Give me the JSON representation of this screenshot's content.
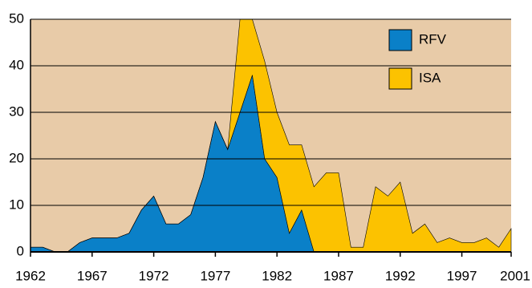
{
  "chart_data": {
    "type": "stacked_area",
    "x": [
      1962,
      1963,
      1964,
      1965,
      1966,
      1967,
      1968,
      1969,
      1970,
      1971,
      1972,
      1973,
      1974,
      1975,
      1976,
      1977,
      1978,
      1979,
      1980,
      1981,
      1982,
      1983,
      1984,
      1985,
      1986,
      1987,
      1988,
      1989,
      1990,
      1991,
      1992,
      1993,
      1994,
      1995,
      1996,
      1997,
      1998,
      1999,
      2000,
      2001
    ],
    "series": [
      {
        "name": "RFV",
        "color": "#0a80c8",
        "values": [
          1,
          1,
          0,
          0,
          2,
          3,
          3,
          3,
          4,
          9,
          12,
          6,
          6,
          8,
          16,
          28,
          22,
          30,
          38,
          20,
          16,
          4,
          9,
          0,
          0,
          0,
          0,
          0,
          0,
          0,
          0,
          0,
          0,
          0,
          0,
          0,
          0,
          0,
          0,
          0
        ]
      },
      {
        "name": "ISA",
        "color": "#fcc200",
        "values": [
          0,
          0,
          0,
          0,
          0,
          0,
          0,
          0,
          0,
          0,
          0,
          0,
          0,
          0,
          0,
          0,
          0,
          20,
          12,
          21,
          14,
          19,
          14,
          14,
          17,
          17,
          1,
          1,
          14,
          12,
          15,
          4,
          6,
          2,
          3,
          2,
          2,
          3,
          1,
          5
        ]
      }
    ],
    "xlim": [
      1962,
      2001
    ],
    "ylim": [
      0,
      50
    ],
    "xticks": [
      1962,
      1967,
      1972,
      1977,
      1982,
      1987,
      1992,
      1997,
      2001
    ],
    "yticks": [
      0,
      10,
      20,
      30,
      40,
      50
    ],
    "grid": true,
    "background": "#e8cba8",
    "legend": "upper right"
  }
}
